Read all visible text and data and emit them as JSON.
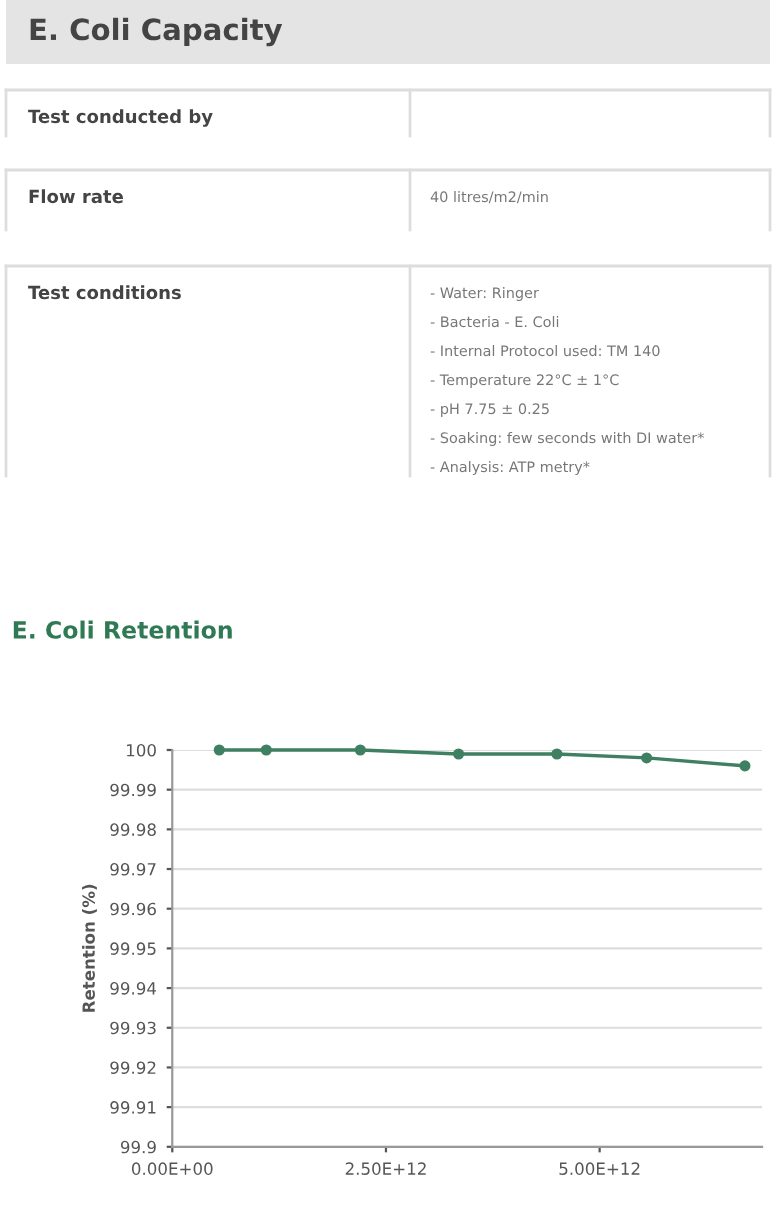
{
  "chart_data": [
    {
      "type": "other",
      "title": "E. Coli Capacity",
      "categories": [
        "Test conducted by",
        "Flow rate",
        "Test conditions"
      ],
      "annotations": [
        "40 litres/m2/min",
        "- Water: Ringer",
        "- Bacteria - E. Coli",
        "- Internal Protocol used: TM 140",
        "- Temperature 22°C ± 1°C",
        "- pH 7.75 ± 0.25",
        "- Soaking: few seconds with DI water*",
        "- Analysis: ATP metry*"
      ]
    },
    {
      "type": "line",
      "title": "E. Coli Retention",
      "ylabel": "Retention (%)",
      "x": [
        550000000000.0,
        1100000000000.0,
        2200000000000.0,
        3350000000000.0,
        4500000000000.0,
        5550000000000.0,
        6700000000000.0
      ],
      "series": [
        {
          "color": "#3f7f62",
          "values": [
            100,
            100,
            100,
            99.999,
            99.999,
            99.998,
            99.996
          ]
        }
      ],
      "xlim": [
        0,
        6900000000000.0
      ],
      "xticks": [
        {
          "value": 0,
          "label": "0.00E+00"
        },
        {
          "value": 2500000000000.0,
          "label": "2.50E+12"
        },
        {
          "value": 5000000000000.0,
          "label": "5.00E+12"
        }
      ],
      "ylim": [
        99.9,
        100
      ],
      "yticks": [
        {
          "value": 99.9,
          "label": "99.9"
        },
        99.91,
        99.92,
        99.93,
        99.94,
        99.95,
        99.96,
        99.97,
        99.98,
        99.99,
        {
          "value": 100,
          "label": "100"
        }
      ],
      "grid": "y",
      "marker": "circle",
      "line_style": "solid"
    }
  ]
}
